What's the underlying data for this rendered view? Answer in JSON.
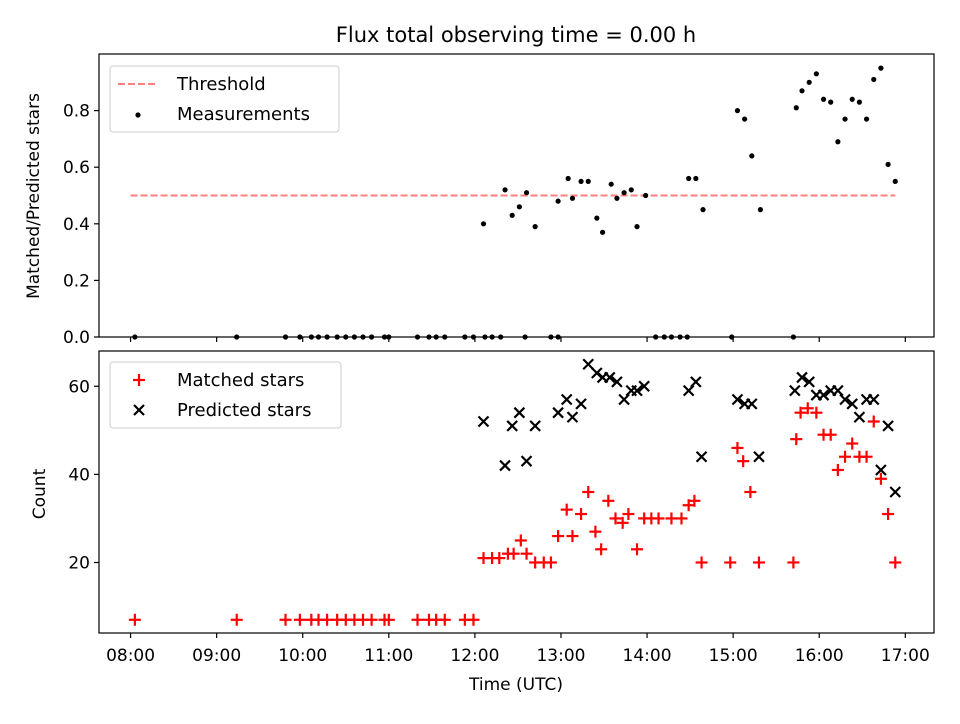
{
  "chart_data": [
    {
      "type": "scatter",
      "title": "Flux total observing time = 0.00 h",
      "xlabel": "",
      "ylabel": "Matched/Predicted stars",
      "xlim": [
        "07:38",
        "17:20"
      ],
      "ylim": [
        0,
        1.0
      ],
      "yticks": [
        0.0,
        0.2,
        0.4,
        0.6,
        0.8
      ],
      "ytick_labels": [
        "0.0",
        "0.2",
        "0.4",
        "0.6",
        "0.8"
      ],
      "legend": "upper-left",
      "threshold": {
        "name": "Threshold",
        "value": 0.5,
        "x_range": [
          "08:00",
          "16:53"
        ],
        "color": "#ff7f7f",
        "style": "dashed"
      },
      "series": [
        {
          "name": "Measurements",
          "color": "#000000",
          "marker": "dot",
          "points": [
            [
              "08:03",
              0.0
            ],
            [
              "09:14",
              0.0
            ],
            [
              "09:48",
              0.0
            ],
            [
              "09:58",
              0.0
            ],
            [
              "10:06",
              0.0
            ],
            [
              "10:11",
              0.0
            ],
            [
              "10:17",
              0.0
            ],
            [
              "10:24",
              0.0
            ],
            [
              "10:30",
              0.0
            ],
            [
              "10:36",
              0.0
            ],
            [
              "10:42",
              0.0
            ],
            [
              "10:48",
              0.0
            ],
            [
              "10:57",
              0.0
            ],
            [
              "11:00",
              0.0
            ],
            [
              "11:20",
              0.0
            ],
            [
              "11:28",
              0.0
            ],
            [
              "11:33",
              0.0
            ],
            [
              "11:39",
              0.0
            ],
            [
              "11:53",
              0.0
            ],
            [
              "11:59",
              0.0
            ],
            [
              "12:07",
              0.0
            ],
            [
              "12:12",
              0.0
            ],
            [
              "12:18",
              0.0
            ],
            [
              "12:35",
              0.0
            ],
            [
              "12:53",
              0.0
            ],
            [
              "12:58",
              0.0
            ],
            [
              "12:06",
              0.4
            ],
            [
              "12:21",
              0.52
            ],
            [
              "12:26",
              0.43
            ],
            [
              "12:31",
              0.46
            ],
            [
              "12:36",
              0.51
            ],
            [
              "12:42",
              0.39
            ],
            [
              "12:58",
              0.48
            ],
            [
              "13:05",
              0.56
            ],
            [
              "13:08",
              0.49
            ],
            [
              "13:14",
              0.55
            ],
            [
              "13:19",
              0.55
            ],
            [
              "13:25",
              0.42
            ],
            [
              "13:29",
              0.37
            ],
            [
              "13:35",
              0.54
            ],
            [
              "13:39",
              0.49
            ],
            [
              "13:44",
              0.51
            ],
            [
              "13:49",
              0.52
            ],
            [
              "13:53",
              0.39
            ],
            [
              "13:59",
              0.5
            ],
            [
              "14:06",
              0.0
            ],
            [
              "14:12",
              0.0
            ],
            [
              "14:17",
              0.0
            ],
            [
              "14:23",
              0.0
            ],
            [
              "14:28",
              0.0
            ],
            [
              "14:59",
              0.0
            ],
            [
              "15:42",
              0.0
            ],
            [
              "14:29",
              0.56
            ],
            [
              "14:34",
              0.56
            ],
            [
              "14:39",
              0.45
            ],
            [
              "15:03",
              0.8
            ],
            [
              "15:08",
              0.77
            ],
            [
              "15:13",
              0.64
            ],
            [
              "15:19",
              0.45
            ],
            [
              "15:44",
              0.81
            ],
            [
              "15:48",
              0.87
            ],
            [
              "15:53",
              0.9
            ],
            [
              "15:58",
              0.93
            ],
            [
              "16:03",
              0.84
            ],
            [
              "16:08",
              0.83
            ],
            [
              "16:13",
              0.69
            ],
            [
              "16:18",
              0.77
            ],
            [
              "16:23",
              0.84
            ],
            [
              "16:28",
              0.83
            ],
            [
              "16:33",
              0.77
            ],
            [
              "16:38",
              0.91
            ],
            [
              "16:43",
              0.95
            ],
            [
              "16:48",
              0.61
            ],
            [
              "16:53",
              0.55
            ]
          ]
        }
      ]
    },
    {
      "type": "scatter",
      "title": "",
      "xlabel": "Time (UTC)",
      "ylabel": "Count",
      "xlim": [
        "07:38",
        "17:20"
      ],
      "ylim": [
        4,
        68
      ],
      "yticks": [
        20,
        40,
        60
      ],
      "ytick_labels": [
        "20",
        "40",
        "60"
      ],
      "xticks": [
        "08:00",
        "09:00",
        "10:00",
        "11:00",
        "12:00",
        "13:00",
        "14:00",
        "15:00",
        "16:00",
        "17:00"
      ],
      "legend": "upper-left",
      "series": [
        {
          "name": "Matched stars",
          "color": "#ff0000",
          "marker": "plus",
          "points": [
            [
              "08:03",
              7
            ],
            [
              "09:14",
              7
            ],
            [
              "09:48",
              7
            ],
            [
              "09:58",
              7
            ],
            [
              "10:06",
              7
            ],
            [
              "10:11",
              7
            ],
            [
              "10:17",
              7
            ],
            [
              "10:24",
              7
            ],
            [
              "10:30",
              7
            ],
            [
              "10:36",
              7
            ],
            [
              "10:42",
              7
            ],
            [
              "10:48",
              7
            ],
            [
              "10:57",
              7
            ],
            [
              "11:00",
              7
            ],
            [
              "11:20",
              7
            ],
            [
              "11:28",
              7
            ],
            [
              "11:33",
              7
            ],
            [
              "11:39",
              7
            ],
            [
              "11:53",
              7
            ],
            [
              "11:59",
              7
            ],
            [
              "12:06",
              21
            ],
            [
              "12:12",
              21
            ],
            [
              "12:17",
              21
            ],
            [
              "12:23",
              22
            ],
            [
              "12:27",
              22
            ],
            [
              "12:32",
              25
            ],
            [
              "12:36",
              22
            ],
            [
              "12:42",
              20
            ],
            [
              "12:48",
              20
            ],
            [
              "12:53",
              20
            ],
            [
              "12:58",
              26
            ],
            [
              "13:04",
              32
            ],
            [
              "13:08",
              26
            ],
            [
              "13:14",
              31
            ],
            [
              "13:19",
              36
            ],
            [
              "13:24",
              27
            ],
            [
              "13:28",
              23
            ],
            [
              "13:33",
              34
            ],
            [
              "13:38",
              30
            ],
            [
              "13:43",
              29
            ],
            [
              "13:47",
              31
            ],
            [
              "13:53",
              23
            ],
            [
              "13:58",
              30
            ],
            [
              "14:03",
              30
            ],
            [
              "14:08",
              30
            ],
            [
              "14:17",
              30
            ],
            [
              "14:24",
              30
            ],
            [
              "14:29",
              33
            ],
            [
              "14:33",
              34
            ],
            [
              "14:38",
              20
            ],
            [
              "14:58",
              20
            ],
            [
              "15:03",
              46
            ],
            [
              "15:07",
              43
            ],
            [
              "15:12",
              36
            ],
            [
              "15:18",
              20
            ],
            [
              "15:42",
              20
            ],
            [
              "15:44",
              48
            ],
            [
              "15:47",
              54
            ],
            [
              "15:52",
              55
            ],
            [
              "15:58",
              54
            ],
            [
              "16:03",
              49
            ],
            [
              "16:08",
              49
            ],
            [
              "16:13",
              41
            ],
            [
              "16:18",
              44
            ],
            [
              "16:23",
              47
            ],
            [
              "16:28",
              44
            ],
            [
              "16:33",
              44
            ],
            [
              "16:38",
              52
            ],
            [
              "16:43",
              39
            ],
            [
              "16:48",
              31
            ],
            [
              "16:53",
              20
            ]
          ]
        },
        {
          "name": "Predicted stars",
          "color": "#000000",
          "marker": "x",
          "points": [
            [
              "12:06",
              52
            ],
            [
              "12:21",
              42
            ],
            [
              "12:26",
              51
            ],
            [
              "12:31",
              54
            ],
            [
              "12:36",
              43
            ],
            [
              "12:42",
              51
            ],
            [
              "12:58",
              54
            ],
            [
              "13:04",
              57
            ],
            [
              "13:08",
              53
            ],
            [
              "13:14",
              56
            ],
            [
              "13:19",
              65
            ],
            [
              "13:25",
              63
            ],
            [
              "13:29",
              62
            ],
            [
              "13:34",
              62
            ],
            [
              "13:39",
              61
            ],
            [
              "13:44",
              57
            ],
            [
              "13:49",
              59
            ],
            [
              "13:53",
              59
            ],
            [
              "13:58",
              60
            ],
            [
              "14:29",
              59
            ],
            [
              "14:34",
              61
            ],
            [
              "14:38",
              44
            ],
            [
              "15:03",
              57
            ],
            [
              "15:08",
              56
            ],
            [
              "15:13",
              56
            ],
            [
              "15:18",
              44
            ],
            [
              "15:43",
              59
            ],
            [
              "15:48",
              62
            ],
            [
              "15:53",
              61
            ],
            [
              "15:58",
              58
            ],
            [
              "16:03",
              58
            ],
            [
              "16:08",
              59
            ],
            [
              "16:13",
              59
            ],
            [
              "16:18",
              57
            ],
            [
              "16:23",
              56
            ],
            [
              "16:28",
              53
            ],
            [
              "16:33",
              57
            ],
            [
              "16:38",
              57
            ],
            [
              "16:43",
              41
            ],
            [
              "16:48",
              51
            ],
            [
              "16:53",
              36
            ]
          ]
        }
      ]
    }
  ]
}
